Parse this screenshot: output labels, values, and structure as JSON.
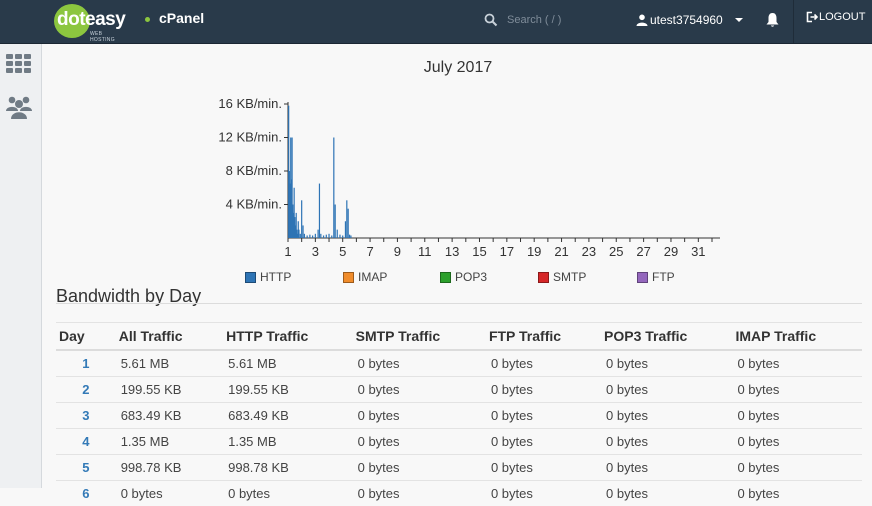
{
  "header": {
    "logo_part1": "dot",
    "logo_part2": "easy",
    "logo_subtitle": "WEB HOSTING",
    "app_name": "cPanel",
    "search_placeholder": "Search ( / )",
    "username": "utest3754960",
    "logout_label": "LOGOUT"
  },
  "sidebar": {
    "items": [
      {
        "icon": "grid-icon"
      },
      {
        "icon": "users-icon"
      }
    ]
  },
  "chart_data": {
    "type": "bar",
    "title": "July 2017",
    "ylabel": "",
    "xlabel": "",
    "ylim": [
      0,
      16
    ],
    "yticks": [
      "4 KB/min.",
      "8 KB/min.",
      "12 KB/min.",
      "16 KB/min."
    ],
    "ytick_values": [
      4,
      8,
      12,
      16
    ],
    "xlim": [
      1,
      32
    ],
    "xticks": [
      1,
      3,
      5,
      7,
      9,
      11,
      13,
      15,
      17,
      19,
      21,
      23,
      25,
      27,
      29,
      31
    ],
    "series": [
      {
        "name": "HTTP",
        "x": [
          1.05,
          1.1,
          1.15,
          1.2,
          1.25,
          1.3,
          1.35,
          1.4,
          1.45,
          1.5,
          1.55,
          1.6,
          1.65,
          1.7,
          1.75,
          1.8,
          1.9,
          2.0,
          2.1,
          2.2,
          2.4,
          2.6,
          2.8,
          3.0,
          3.2,
          3.3,
          3.4,
          3.6,
          3.8,
          4.0,
          4.2,
          4.35,
          4.45,
          4.6,
          4.8,
          5.0,
          5.2,
          5.3,
          5.4,
          5.5,
          5.6
        ],
        "values": [
          15.8,
          8.0,
          6.5,
          12.0,
          7.0,
          12.0,
          4.0,
          3.0,
          6.0,
          2.5,
          1.5,
          3.0,
          1.0,
          0.5,
          2.0,
          1.0,
          0.5,
          4.5,
          1.5,
          0.5,
          0.3,
          0.4,
          0.3,
          0.5,
          1.0,
          6.5,
          0.5,
          0.3,
          0.4,
          0.5,
          0.3,
          12.0,
          4.0,
          1.0,
          0.4,
          0.3,
          2.0,
          4.5,
          3.5,
          0.4,
          0.3
        ]
      },
      {
        "name": "IMAP",
        "x": [],
        "values": []
      },
      {
        "name": "POP3",
        "x": [],
        "values": []
      },
      {
        "name": "SMTP",
        "x": [],
        "values": []
      },
      {
        "name": "FTP",
        "x": [],
        "values": []
      }
    ]
  },
  "legend": [
    {
      "label": "HTTP",
      "color": "#2e74b5"
    },
    {
      "label": "IMAP",
      "color": "#f08c2b"
    },
    {
      "label": "POP3",
      "color": "#2ca02c"
    },
    {
      "label": "SMTP",
      "color": "#d62728"
    },
    {
      "label": "FTP",
      "color": "#9467bd"
    }
  ],
  "bandwidth": {
    "title": "Bandwidth by Day",
    "columns": [
      "Day",
      "All Traffic",
      "HTTP Traffic",
      "SMTP Traffic",
      "FTP Traffic",
      "POP3 Traffic",
      "IMAP Traffic"
    ],
    "rows": [
      [
        "1",
        "5.61 MB",
        "5.61 MB",
        "0 bytes",
        "0 bytes",
        "0 bytes",
        "0 bytes"
      ],
      [
        "2",
        "199.55 KB",
        "199.55 KB",
        "0 bytes",
        "0 bytes",
        "0 bytes",
        "0 bytes"
      ],
      [
        "3",
        "683.49 KB",
        "683.49 KB",
        "0 bytes",
        "0 bytes",
        "0 bytes",
        "0 bytes"
      ],
      [
        "4",
        "1.35 MB",
        "1.35 MB",
        "0 bytes",
        "0 bytes",
        "0 bytes",
        "0 bytes"
      ],
      [
        "5",
        "998.78 KB",
        "998.78 KB",
        "0 bytes",
        "0 bytes",
        "0 bytes",
        "0 bytes"
      ],
      [
        "6",
        "0 bytes",
        "0 bytes",
        "0 bytes",
        "0 bytes",
        "0 bytes",
        "0 bytes"
      ]
    ]
  }
}
